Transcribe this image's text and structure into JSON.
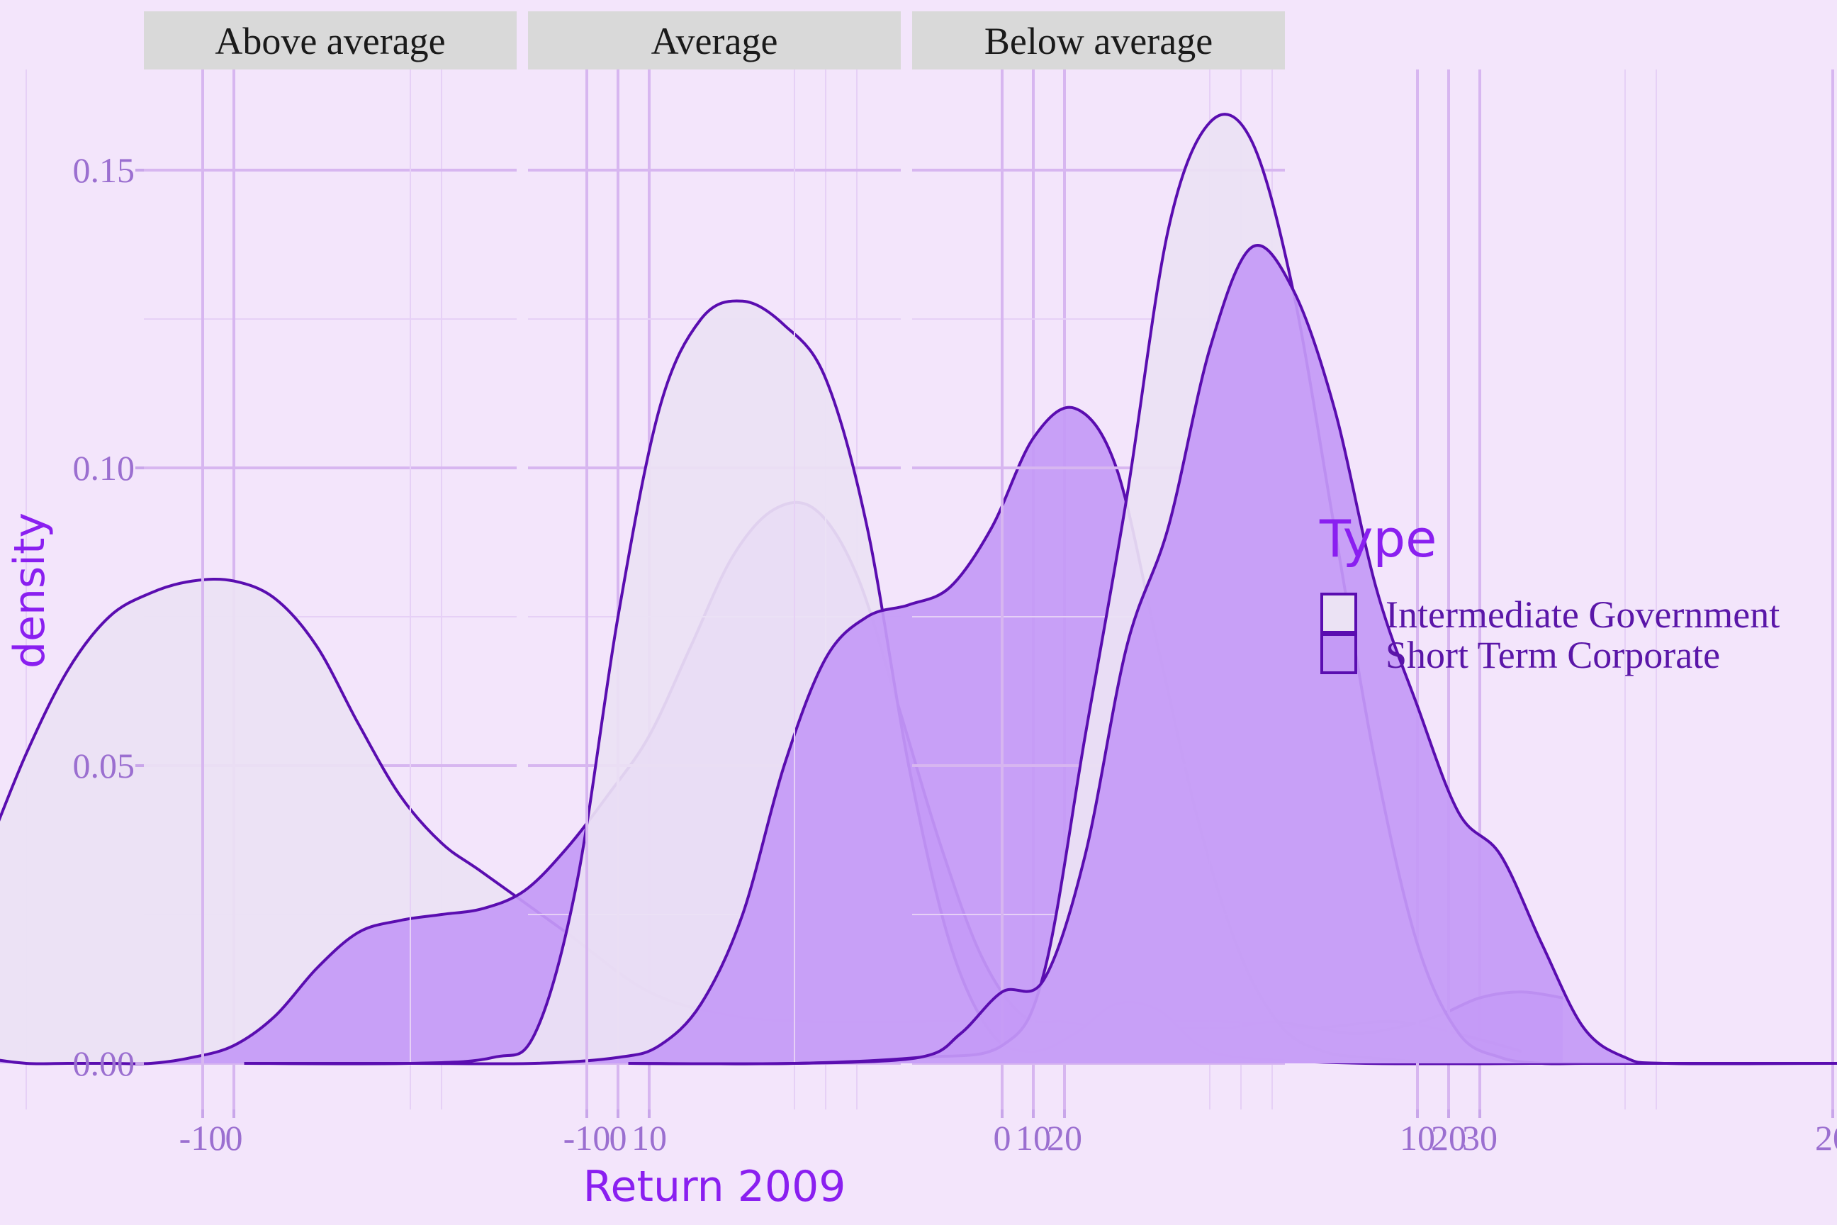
{
  "chart_data": {
    "type": "area",
    "subtype": "density",
    "xlabel": "Return 2009",
    "ylabel": "density",
    "xlim": [
      -10,
      32
    ],
    "ylim": [
      0,
      0.16
    ],
    "x_ticks": [
      -10,
      0,
      10,
      20,
      30
    ],
    "y_ticks": [
      0.0,
      0.05,
      0.1,
      0.15
    ],
    "x_tick_labels": [
      "-10",
      "0",
      "10",
      "20",
      "30"
    ],
    "y_tick_labels": [
      "0.00",
      "0.05",
      "0.10",
      "0.15"
    ],
    "grid": true,
    "legend": {
      "title": "Type",
      "placement": "right",
      "entries": [
        "Intermediate Government",
        "Short Term Corporate"
      ]
    },
    "colors": {
      "background": "#f3e5fb",
      "line": "#5a0db0",
      "fill_intermediate": "#ebe2f4",
      "fill_short_term": "#c49af6",
      "accent": "#8a1ff0"
    },
    "facets": [
      {
        "title": "Above average",
        "series": [
          {
            "name": "Intermediate Government",
            "x": [
              -9,
              -8,
              -7,
              -6,
              -5,
              -4,
              -3,
              -2,
              -1,
              0,
              1,
              2,
              3,
              4,
              5,
              6,
              8,
              10,
              12,
              14,
              16,
              18,
              20,
              22,
              24,
              26,
              28,
              30,
              31
            ],
            "y": [
              0.003,
              0.01,
              0.02,
              0.035,
              0.052,
              0.066,
              0.075,
              0.079,
              0.081,
              0.081,
              0.078,
              0.07,
              0.057,
              0.045,
              0.037,
              0.032,
              0.022,
              0.012,
              0.008,
              0.007,
              0.007,
              0.007,
              0.006,
              0.007,
              0.007,
              0.006,
              0.007,
              0.004,
              0.002
            ]
          },
          {
            "name": "Short Term Corporate",
            "x": [
              -9,
              -8,
              -7,
              -6,
              -5,
              -4,
              -3,
              -2,
              -1,
              0,
              1,
              2,
              3,
              4,
              5,
              6,
              7,
              8,
              9,
              10,
              11,
              12,
              13,
              14,
              15,
              16,
              17,
              18,
              19,
              20,
              21,
              22,
              23,
              24,
              25,
              26,
              27,
              28,
              29,
              30,
              31,
              32
            ],
            "y": [
              0.007,
              0.006,
              0.003,
              0.001,
              0.0,
              0.0,
              0.0,
              0.0,
              0.001,
              0.003,
              0.008,
              0.016,
              0.022,
              0.024,
              0.025,
              0.026,
              0.029,
              0.036,
              0.045,
              0.055,
              0.07,
              0.085,
              0.093,
              0.093,
              0.082,
              0.06,
              0.037,
              0.018,
              0.008,
              0.007,
              0.006,
              0.006,
              0.006,
              0.006,
              0.007,
              0.006,
              0.005,
              0.006,
              0.008,
              0.011,
              0.012,
              0.011
            ]
          }
        ]
      },
      {
        "title": "Average",
        "series": [
          {
            "name": "Intermediate Government",
            "x": [
              -9,
              -5,
              -3,
              -2,
              -1,
              0,
              1,
              2,
              3,
              4,
              5,
              6,
              7,
              8,
              9,
              10,
              11,
              12,
              13,
              14,
              15,
              18,
              22,
              26,
              32
            ],
            "y": [
              0.0,
              0.0,
              0.001,
              0.005,
              0.03,
              0.075,
              0.11,
              0.125,
              0.128,
              0.124,
              0.115,
              0.09,
              0.05,
              0.02,
              0.005,
              0.002,
              0.005,
              0.01,
              0.009,
              0.003,
              0.001,
              0.0,
              0.0,
              0.0,
              0.0
            ]
          },
          {
            "name": "Short Term Corporate",
            "x": [
              -9,
              -5,
              -2,
              0,
              1,
              2,
              3,
              4,
              5,
              6,
              7,
              8,
              9,
              10,
              11,
              12,
              13,
              14,
              15,
              16,
              17,
              18,
              20,
              22,
              26,
              32
            ],
            "y": [
              0.0,
              0.0,
              0.0,
              0.001,
              0.003,
              0.01,
              0.025,
              0.05,
              0.068,
              0.075,
              0.077,
              0.08,
              0.09,
              0.105,
              0.11,
              0.1,
              0.07,
              0.04,
              0.018,
              0.006,
              0.002,
              0.001,
              0.0,
              0.0,
              0.0,
              0.0
            ]
          }
        ]
      },
      {
        "title": "Below average",
        "series": [
          {
            "name": "Intermediate Government",
            "x": [
              -9,
              -5,
              -2,
              0,
              1,
              2,
              3,
              4,
              5,
              6,
              7,
              8,
              9,
              10,
              11,
              12,
              13,
              14,
              16,
              20,
              26,
              32
            ],
            "y": [
              0.0,
              0.0,
              0.001,
              0.003,
              0.015,
              0.055,
              0.095,
              0.14,
              0.158,
              0.155,
              0.13,
              0.09,
              0.05,
              0.02,
              0.005,
              0.001,
              0.0,
              0.0,
              0.0,
              0.0,
              0.0,
              0.0
            ]
          },
          {
            "name": "Short Term Corporate",
            "x": [
              -9,
              -5,
              -2,
              -1,
              0,
              1,
              2,
              3,
              4,
              5,
              6,
              7,
              8,
              9,
              10,
              11,
              12,
              13,
              14,
              15,
              16,
              20,
              26,
              32
            ],
            "y": [
              0.0,
              0.0,
              0.001,
              0.005,
              0.012,
              0.014,
              0.035,
              0.07,
              0.09,
              0.12,
              0.137,
              0.13,
              0.11,
              0.08,
              0.06,
              0.042,
              0.035,
              0.02,
              0.006,
              0.001,
              0.0,
              0.0,
              0.0,
              0.0
            ]
          }
        ]
      }
    ]
  }
}
